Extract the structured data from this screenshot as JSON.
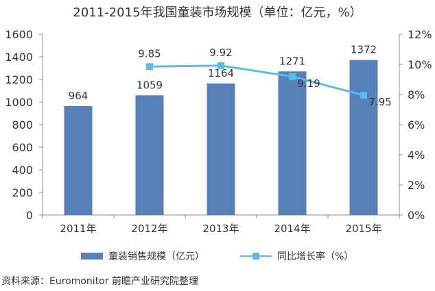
{
  "title": "2011-2015年我国童装市场规模（单位：亿元，%）",
  "source": "资料来源：Euromonitor 前瞻产业研究院整理",
  "colors": {
    "bar": "#5580B8",
    "line": "#55BEEA",
    "axis": "#888888",
    "text": "#333333"
  },
  "chart_data": {
    "type": "bar",
    "categories": [
      "2011年",
      "2012年",
      "2013年",
      "2014年",
      "2015年"
    ],
    "series": [
      {
        "name": "童装销售规模（亿元）",
        "type": "bar",
        "axis": "left",
        "values": [
          964,
          1059,
          1164,
          1271,
          1372
        ],
        "labels": [
          "964",
          "1059",
          "1164",
          "1271",
          "1372"
        ]
      },
      {
        "name": "同比增长率（%）",
        "type": "line",
        "axis": "right",
        "values": [
          null,
          9.85,
          9.92,
          9.19,
          7.95
        ],
        "labels": [
          "",
          "9.85",
          "9.92",
          "9.19",
          "7.95"
        ]
      }
    ],
    "y_left": {
      "min": 0,
      "max": 1600,
      "ticks": [
        "0",
        "200",
        "400",
        "600",
        "800",
        "1000",
        "1200",
        "1400",
        "1600"
      ]
    },
    "y_right": {
      "min": 0,
      "max": 12,
      "ticks": [
        "0%",
        "2%",
        "4%",
        "6%",
        "8%",
        "10%",
        "12%"
      ]
    },
    "legend_position": "bottom",
    "grid": false
  }
}
